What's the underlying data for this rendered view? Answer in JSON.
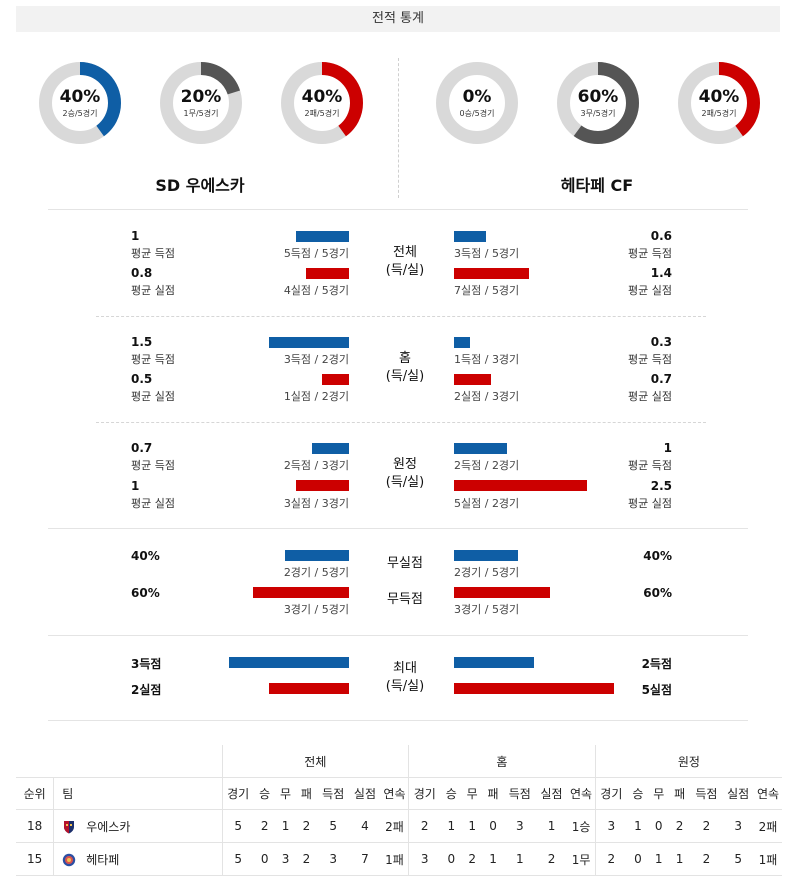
{
  "header": {
    "title": "전적 통계"
  },
  "team_a": {
    "name": "SD 우에스카",
    "donuts": [
      {
        "pct_label": "40%",
        "sub": "2승/5경기",
        "value": 0.4,
        "color": "#0f5ea5"
      },
      {
        "pct_label": "20%",
        "sub": "1무/5경기",
        "value": 0.2,
        "color": "#555555"
      },
      {
        "pct_label": "40%",
        "sub": "2패/5경기",
        "value": 0.4,
        "color": "#cc0000"
      }
    ]
  },
  "team_b": {
    "name": "헤타페 CF",
    "donuts": [
      {
        "pct_label": "0%",
        "sub": "0승/5경기",
        "value": 0.0,
        "color": "#0f5ea5"
      },
      {
        "pct_label": "60%",
        "sub": "3무/5경기",
        "value": 0.6,
        "color": "#555555"
      },
      {
        "pct_label": "40%",
        "sub": "2패/5경기",
        "value": 0.4,
        "color": "#cc0000"
      }
    ]
  },
  "sections": [
    {
      "title": [
        "전체",
        "(득/실)"
      ],
      "left": {
        "scored": "1",
        "scored_label": "평균 득점",
        "scored_count": "5득점 / 5경기",
        "conceded": "0.8",
        "conceded_label": "평균 실점",
        "conceded_count": "4실점 / 5경기"
      },
      "right": {
        "scored": "0.6",
        "scored_label": "평균 득점",
        "scored_count": "3득점 / 5경기",
        "conceded": "1.4",
        "conceded_label": "평균 실점",
        "conceded_count": "7실점 / 5경기"
      }
    },
    {
      "title": [
        "홈",
        "(득/실)"
      ],
      "left": {
        "scored": "1.5",
        "scored_label": "평균 득점",
        "scored_count": "3득점 / 2경기",
        "conceded": "0.5",
        "conceded_label": "평균 실점",
        "conceded_count": "1실점 / 2경기"
      },
      "right": {
        "scored": "0.3",
        "scored_label": "평균 득점",
        "scored_count": "1득점 / 3경기",
        "conceded": "0.7",
        "conceded_label": "평균 실점",
        "conceded_count": "2실점 / 3경기"
      }
    },
    {
      "title": [
        "원정",
        "(득/실)"
      ],
      "left": {
        "scored": "0.7",
        "scored_label": "평균 득점",
        "scored_count": "2득점 / 3경기",
        "conceded": "1",
        "conceded_label": "평균 실점",
        "conceded_count": "3실점 / 3경기"
      },
      "right": {
        "scored": "1",
        "scored_label": "평균 득점",
        "scored_count": "2득점 / 2경기",
        "conceded": "2.5",
        "conceded_label": "평균 실점",
        "conceded_count": "5실점 / 2경기"
      }
    }
  ],
  "clean": {
    "title_top": "무실점",
    "title_bottom": "무득점",
    "left": {
      "clean_sheet": "40%",
      "clean_sheet_count": "2경기 / 5경기",
      "no_score": "60%",
      "no_score_count": "3경기 / 5경기"
    },
    "right": {
      "clean_sheet": "40%",
      "clean_sheet_count": "2경기 / 5경기",
      "no_score": "60%",
      "no_score_count": "3경기 / 5경기"
    }
  },
  "max": {
    "title": [
      "최대",
      "(득/실)"
    ],
    "left": {
      "scored": "3득점",
      "conceded": "2실점"
    },
    "right": {
      "scored": "2득점",
      "conceded": "5실점"
    }
  },
  "standings": {
    "group_headers": [
      "전체",
      "홈",
      "원정"
    ],
    "columns": [
      "순위",
      "팀",
      "경기",
      "승",
      "무",
      "패",
      "득점",
      "실점",
      "연속"
    ],
    "rows": [
      {
        "rank": "18",
        "team": "우에스카",
        "overall": [
          "5",
          "2",
          "1",
          "2",
          "5",
          "4",
          "2패"
        ],
        "home": [
          "2",
          "1",
          "1",
          "0",
          "3",
          "1",
          "1승"
        ],
        "away": [
          "3",
          "1",
          "0",
          "2",
          "2",
          "3",
          "2패"
        ]
      },
      {
        "rank": "15",
        "team": "헤타페",
        "overall": [
          "5",
          "0",
          "3",
          "2",
          "3",
          "7",
          "1패"
        ],
        "home": [
          "3",
          "0",
          "2",
          "1",
          "1",
          "2",
          "1무"
        ],
        "away": [
          "2",
          "0",
          "1",
          "1",
          "2",
          "5",
          "1패"
        ]
      }
    ]
  }
}
